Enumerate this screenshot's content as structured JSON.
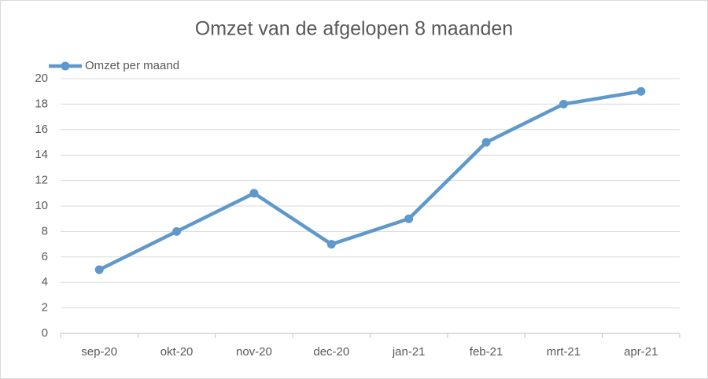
{
  "chart_data": {
    "type": "line",
    "title": "Omzet van de afgelopen 8 maanden",
    "categories": [
      "sep-20",
      "okt-20",
      "nov-20",
      "dec-20",
      "jan-21",
      "feb-21",
      "mrt-21",
      "apr-21"
    ],
    "series": [
      {
        "name": "Omzet per maand",
        "color": "#5f98cb",
        "values": [
          5,
          8,
          11,
          7,
          9,
          15,
          18,
          19
        ]
      }
    ],
    "ylim": [
      0,
      20
    ],
    "yticks": [
      0,
      2,
      4,
      6,
      8,
      10,
      12,
      14,
      16,
      18,
      20
    ],
    "grid": true,
    "legend": "top-left"
  }
}
